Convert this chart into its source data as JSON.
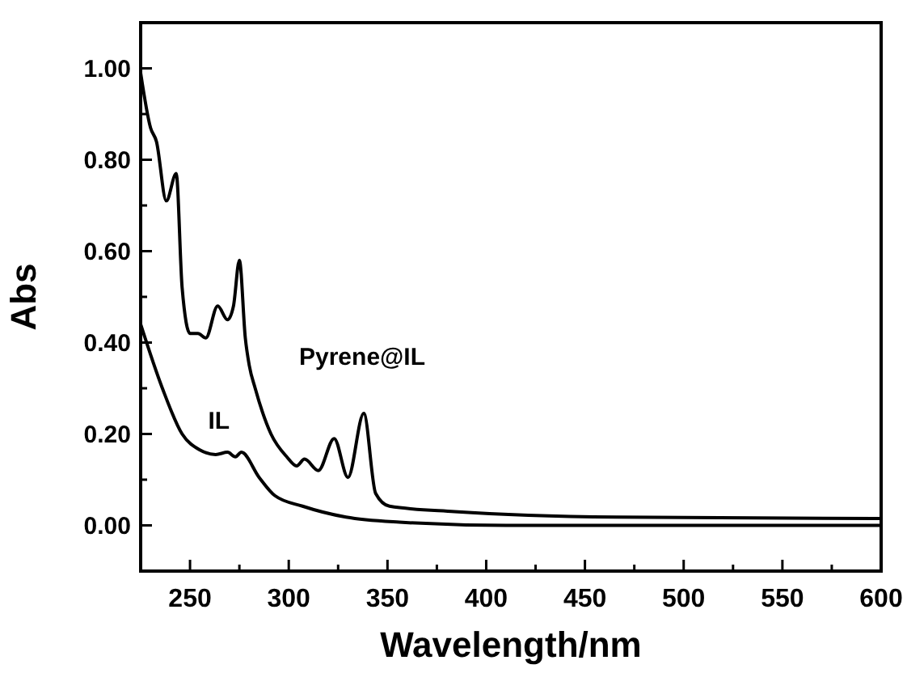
{
  "chart_data": {
    "type": "line",
    "xlabel": "Wavelength/nm",
    "ylabel": "Abs",
    "xlim": [
      225,
      600
    ],
    "ylim": [
      -0.1,
      1.1
    ],
    "xticks": [
      {
        "value": 250,
        "label": "250"
      },
      {
        "value": 275,
        "label": null
      },
      {
        "value": 300,
        "label": "300"
      },
      {
        "value": 325,
        "label": null
      },
      {
        "value": 350,
        "label": "350"
      },
      {
        "value": 375,
        "label": null
      },
      {
        "value": 400,
        "label": "400"
      },
      {
        "value": 425,
        "label": null
      },
      {
        "value": 450,
        "label": "450"
      },
      {
        "value": 475,
        "label": null
      },
      {
        "value": 500,
        "label": "500"
      },
      {
        "value": 525,
        "label": null
      },
      {
        "value": 550,
        "label": "550"
      },
      {
        "value": 575,
        "label": null
      },
      {
        "value": 600,
        "label": "600"
      }
    ],
    "yticks": [
      {
        "value": -0.1,
        "label": null
      },
      {
        "value": 0,
        "label": "0.00"
      },
      {
        "value": 0.1,
        "label": null
      },
      {
        "value": 0.2,
        "label": "0.20"
      },
      {
        "value": 0.3,
        "label": null
      },
      {
        "value": 0.4,
        "label": "0.40"
      },
      {
        "value": 0.5,
        "label": null
      },
      {
        "value": 0.6,
        "label": "0.60"
      },
      {
        "value": 0.7,
        "label": null
      },
      {
        "value": 0.8,
        "label": "0.80"
      },
      {
        "value": 0.9,
        "label": null
      },
      {
        "value": 1.0,
        "label": "1.00"
      }
    ],
    "grid": false,
    "marker": "none",
    "line_style": "solid",
    "series": [
      {
        "name": "Pyrene@IL",
        "color": "#000000",
        "x": [
          225,
          230,
          233,
          238,
          243,
          246,
          250,
          254,
          258,
          264,
          269,
          272,
          275,
          278,
          280,
          283,
          291,
          299,
          304,
          308,
          315,
          323,
          330,
          338,
          344,
          351,
          384,
          466,
          600
        ],
        "values": [
          0.99,
          0.87,
          0.84,
          0.71,
          0.77,
          0.52,
          0.42,
          0.42,
          0.41,
          0.48,
          0.45,
          0.48,
          0.58,
          0.41,
          0.35,
          0.3,
          0.2,
          0.15,
          0.13,
          0.145,
          0.12,
          0.19,
          0.105,
          0.245,
          0.07,
          0.042,
          0.03,
          0.018,
          0.015
        ]
      },
      {
        "name": "IL",
        "color": "#000000",
        "x": [
          225,
          236,
          246,
          255,
          263,
          269,
          273,
          276,
          285,
          293,
          307,
          329,
          356,
          410,
          600
        ],
        "values": [
          0.44,
          0.3,
          0.2,
          0.165,
          0.155,
          0.16,
          0.15,
          0.16,
          0.105,
          0.065,
          0.042,
          0.018,
          0.007,
          0.0,
          0.0
        ]
      }
    ]
  }
}
